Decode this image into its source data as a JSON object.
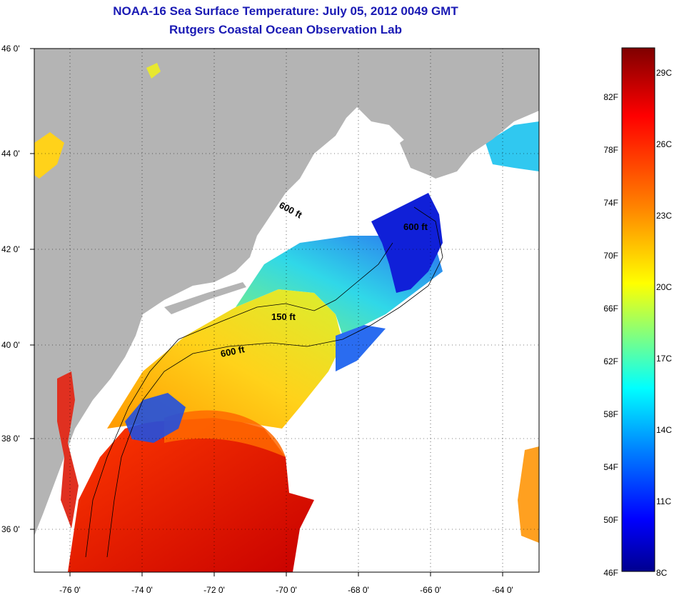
{
  "header": {
    "title": "NOAA-16 Sea Surface Temperature:  July 05, 2012 0049 GMT",
    "subtitle": "Rutgers Coastal Ocean Observation Lab"
  },
  "map": {
    "lon_range": [
      -77,
      -63
    ],
    "lat_range": [
      35,
      46
    ],
    "lat_labels": [
      "46 0'",
      "44 0'",
      "42 0'",
      "40 0'",
      "38 0'",
      "36 0'"
    ],
    "lon_labels": [
      "-76 0'",
      "-74 0'",
      "-72 0'",
      "-70 0'",
      "-68 0'",
      "-66 0'",
      "-64 0'"
    ],
    "contour_labels": [
      "600 ft",
      "600 ft",
      "150 ft",
      "600 ft"
    ],
    "colors": {
      "land": "#b4b4b4",
      "ocean_nodata": "#ffffff",
      "contour": "#000000"
    }
  },
  "colorbar": {
    "fahrenheit_labels": [
      "82F",
      "78F",
      "74F",
      "70F",
      "66F",
      "62F",
      "58F",
      "54F",
      "50F",
      "46F"
    ],
    "celsius_labels": [
      "29C",
      "26C",
      "23C",
      "20C",
      "17C",
      "14C",
      "11C",
      "8C"
    ],
    "min_label_f": "46F",
    "min_label_c": "8C",
    "colormap": [
      "#7f0000",
      "#ff0000",
      "#ff8000",
      "#ffff00",
      "#80ff80",
      "#00ffff",
      "#0080ff",
      "#0000ff",
      "#00008f"
    ]
  }
}
